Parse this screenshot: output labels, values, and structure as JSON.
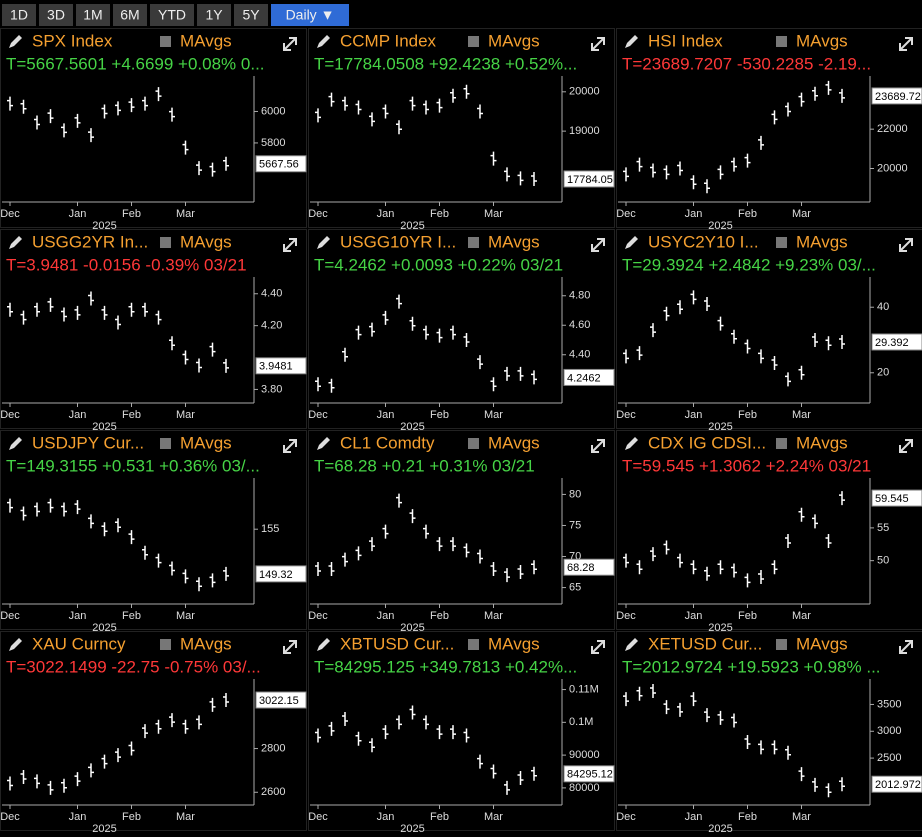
{
  "toolbar": {
    "buttons": [
      "1D",
      "3D",
      "1M",
      "6M",
      "YTD",
      "1Y",
      "5Y",
      "Daily ▼"
    ],
    "active": 7
  },
  "mavgs_label": "MAvgs",
  "year_label": "2025",
  "categories": [
    "Dec",
    null,
    null,
    null,
    null,
    "Jan",
    null,
    null,
    null,
    "Feb",
    null,
    null,
    null,
    "Mar",
    null,
    null,
    null
  ],
  "panels": [
    {
      "title": "SPX Index",
      "quote": "T=5667.5601 +4.6699 +0.08% 0...",
      "quote_color": "#46d446",
      "values": [
        6050,
        6030,
        5930,
        5970,
        5880,
        5940,
        5850,
        6000,
        6020,
        6040,
        6050,
        6110,
        5980,
        5770,
        5640,
        5630,
        5667.56
      ],
      "ylim": [
        5450,
        6200
      ],
      "yticks": [
        5800,
        6000
      ],
      "last_label": {
        "value": 5667.56,
        "label": "5667.56"
      }
    },
    {
      "title": "CCMP Index",
      "quote": "T=17784.0508 +92.4238 +0.52%...",
      "quote_color": "#46d446",
      "values": [
        19400,
        19800,
        19700,
        19600,
        19300,
        19500,
        19100,
        19700,
        19600,
        19650,
        19900,
        20000,
        19500,
        18300,
        17900,
        17800,
        17784.05
      ],
      "ylim": [
        17300,
        20300
      ],
      "yticks": [
        19000,
        20000
      ],
      "last_label": {
        "value": 17784.05,
        "label": "17784.05"
      }
    },
    {
      "title": "HSI Index",
      "quote": "T=23689.7207 -530.2285 -2.19...",
      "quote_color": "#ff3838",
      "values": [
        19700,
        20200,
        19900,
        19800,
        20000,
        19300,
        19100,
        19800,
        20200,
        20400,
        21300,
        22600,
        23000,
        23500,
        23800,
        24100,
        23689.72
      ],
      "ylim": [
        18500,
        24500
      ],
      "yticks": [
        20000,
        22000
      ],
      "last_label": {
        "value": 23689.72,
        "label": "23689.72"
      }
    },
    {
      "title": "USGG2YR In...",
      "quote": "T=3.9481 -0.0156 -0.39% 03/21",
      "quote_color": "#ff3838",
      "values": [
        4.3,
        4.25,
        4.3,
        4.33,
        4.27,
        4.28,
        4.37,
        4.28,
        4.22,
        4.3,
        4.3,
        4.25,
        4.09,
        4.0,
        3.95,
        4.05,
        3.9481
      ],
      "ylim": [
        3.74,
        4.48
      ],
      "yticks": [
        {
          "value": 3.8,
          "label": "3.80"
        },
        {
          "value": 4.2,
          "label": "4.20"
        },
        {
          "value": 4.4,
          "label": "4.40"
        }
      ],
      "last_label": {
        "value": 3.9481,
        "label": "3.9481"
      }
    },
    {
      "title": "USGG10YR I...",
      "quote": "T=4.2462 +0.0093 +0.22% 03/21",
      "quote_color": "#46d446",
      "values": [
        4.2,
        4.19,
        4.4,
        4.55,
        4.57,
        4.65,
        4.76,
        4.61,
        4.55,
        4.53,
        4.55,
        4.5,
        4.35,
        4.2,
        4.27,
        4.27,
        4.2462
      ],
      "ylim": [
        4.1,
        4.9
      ],
      "yticks": [
        {
          "value": 4.4,
          "label": "4.40"
        },
        {
          "value": 4.6,
          "label": "4.60"
        },
        {
          "value": 4.8,
          "label": "4.80"
        }
      ],
      "last_label": {
        "value": 4.2462,
        "label": "4.2462"
      }
    },
    {
      "title": "USYC2Y10 I...",
      "quote": "T=29.3924 +2.4842 +9.23% 03/...",
      "quote_color": "#46d446",
      "values": [
        25,
        26,
        33,
        38,
        40,
        43,
        41,
        35,
        31,
        28,
        25,
        23,
        18,
        20,
        30,
        29,
        29.392
      ],
      "ylim": [
        12,
        48
      ],
      "yticks": [
        20,
        40
      ],
      "last_label": {
        "value": 29.392,
        "label": "29.392"
      }
    },
    {
      "title": "USDJPY Cur...",
      "quote": "T=149.3155 +0.531 +0.36% 03/...",
      "quote_color": "#46d446",
      "values": [
        158,
        157,
        157.5,
        158,
        157.5,
        157.8,
        156,
        155,
        155.5,
        154,
        152,
        151,
        150,
        149,
        148,
        148.5,
        149.32
      ],
      "ylim": [
        146,
        161
      ],
      "yticks": [
        155
      ],
      "last_label": {
        "value": 149.32,
        "label": "149.32"
      }
    },
    {
      "title": "CL1 Comdty",
      "quote": "T=68.28 +0.21 +0.31% 03/21",
      "quote_color": "#46d446",
      "values": [
        68,
        68,
        69.5,
        70.5,
        72,
        74,
        79,
        76.5,
        74,
        72,
        72,
        71,
        70,
        68,
        67,
        67.5,
        68.28
      ],
      "ylim": [
        63,
        82
      ],
      "yticks": [
        65,
        70,
        75,
        80
      ],
      "last_label": {
        "value": 68.28,
        "label": "68.28"
      }
    },
    {
      "title": "CDX IG CDSI...",
      "quote": "T=59.545 +1.3062 +2.24% 03/21",
      "quote_color": "#ff3838",
      "values": [
        50,
        49,
        51,
        52,
        50,
        49,
        48,
        49,
        48.5,
        47,
        47.5,
        49,
        53,
        57,
        56,
        53,
        59.545
      ],
      "ylim": [
        44,
        62
      ],
      "yticks": [
        50,
        55
      ],
      "last_label": {
        "value": 59.545,
        "label": "59.545"
      }
    },
    {
      "title": "XAU Curncy",
      "quote": "T=3022.1499 -22.75 -0.75% 03/...",
      "quote_color": "#ff3838",
      "values": [
        2640,
        2670,
        2650,
        2620,
        2630,
        2660,
        2700,
        2740,
        2770,
        2800,
        2880,
        2900,
        2930,
        2900,
        2920,
        3000,
        3022.15
      ],
      "ylim": [
        2560,
        3100
      ],
      "yticks": [
        2600,
        2800
      ],
      "last_label": {
        "value": 3022.15,
        "label": "3022.15"
      }
    },
    {
      "title": "XBTUSD Cur...",
      "quote": "T=84295.125 +349.7813 +0.42%...",
      "quote_color": "#46d446",
      "values": [
        96000,
        98000,
        101000,
        95000,
        93000,
        97000,
        100000,
        103000,
        100000,
        97000,
        97000,
        96000,
        88000,
        85000,
        80000,
        83000,
        84295.12
      ],
      "ylim": [
        76000,
        112000
      ],
      "yticks": [
        80000,
        90000,
        {
          "value": 100000,
          "label": "0.1M"
        },
        {
          "value": 110000,
          "label": "0.11M"
        }
      ],
      "last_label": {
        "value": 84295.12,
        "label": "84295.12"
      }
    },
    {
      "title": "XETUSD Cur...",
      "quote": "T=2012.9724 +19.5923 +0.98% ...",
      "quote_color": "#46d446",
      "values": [
        3600,
        3700,
        3750,
        3450,
        3400,
        3600,
        3300,
        3250,
        3200,
        2800,
        2700,
        2700,
        2600,
        2200,
        2000,
        1900,
        2012.972
      ],
      "ylim": [
        1700,
        3900
      ],
      "yticks": [
        2500,
        3000,
        3500
      ],
      "last_label": {
        "value": 2012.972,
        "label": "2012.972"
      }
    }
  ]
}
